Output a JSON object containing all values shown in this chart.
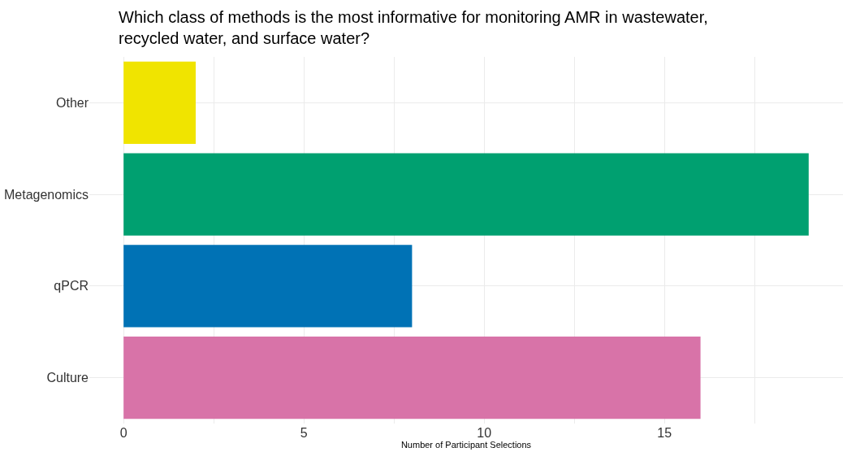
{
  "chart_data": {
    "type": "bar",
    "orientation": "horizontal",
    "title": "Which class of methods is the most informative for monitoring AMR in wastewater,\nrecycled water, and surface water?",
    "xlabel": "Number of Participant Selections",
    "categories": [
      "Other",
      "Metagenomics",
      "qPCR",
      "Culture"
    ],
    "values": [
      2,
      19,
      8,
      16
    ],
    "colors": [
      "#f0e400",
      "#00a070",
      "#0072b5",
      "#d873a8"
    ],
    "xlim": [
      -0.95,
      19.95
    ],
    "xticks": [
      0,
      {
        "value": 2.5,
        "label": null
      },
      5,
      {
        "value": 7.5,
        "label": null
      },
      10,
      {
        "value": 12.5,
        "label": null
      },
      15,
      {
        "value": 17.5,
        "label": null
      }
    ],
    "grid": true
  }
}
